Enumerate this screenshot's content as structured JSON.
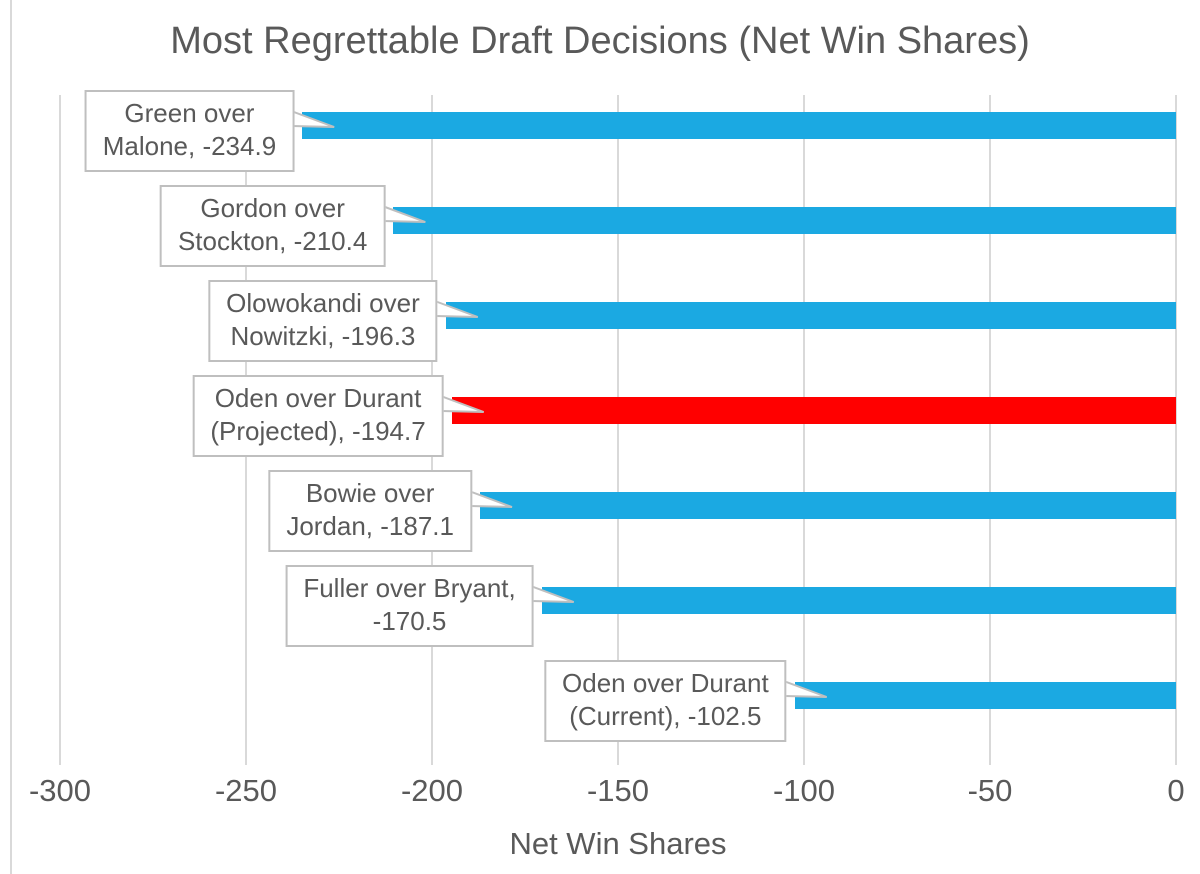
{
  "chart_data": {
    "type": "bar",
    "orientation": "horizontal",
    "title": "Most Regrettable Draft Decisions (Net Win Shares)",
    "xlabel": "Net Win Shares",
    "xlim": [
      -300,
      0
    ],
    "xticks": [
      "-300",
      "-250",
      "-200",
      "-150",
      "-100",
      "-50",
      "0"
    ],
    "xtick_values": [
      -300,
      -250,
      -200,
      -150,
      -100,
      -50,
      0
    ],
    "grid": true,
    "legend": false,
    "categories": [
      "Green over Malone",
      "Gordon over Stockton",
      "Olowokandi over Nowitzki",
      "Oden over Durant (Projected)",
      "Bowie over Jordan",
      "Fuller over Bryant",
      "Oden over Durant (Current)"
    ],
    "values": [
      -234.9,
      -210.4,
      -196.3,
      -194.7,
      -187.1,
      -170.5,
      -102.5
    ],
    "data_labels": [
      {
        "line1": "Green over",
        "line2": "Malone, -234.9"
      },
      {
        "line1": "Gordon over",
        "line2": "Stockton, -210.4"
      },
      {
        "line1": "Olowokandi over",
        "line2": "Nowitzki, -196.3"
      },
      {
        "line1": "Oden over Durant",
        "line2": "(Projected), -194.7"
      },
      {
        "line1": "Bowie over",
        "line2": "Jordan, -187.1"
      },
      {
        "line1": "Fuller over Bryant,",
        "line2": "-170.5"
      },
      {
        "line1": "Oden over Durant",
        "line2": "(Current), -102.5"
      }
    ],
    "bar_colors": [
      "#1ba9e2",
      "#1ba9e2",
      "#1ba9e2",
      "#ff0000",
      "#1ba9e2",
      "#1ba9e2",
      "#1ba9e2"
    ],
    "highlighted_category": "Oden over Durant (Projected)"
  },
  "colors": {
    "bar_default": "#1ba9e2",
    "bar_highlight": "#ff0000",
    "gridline": "#d9d9d9",
    "text": "#595959",
    "callout_border": "#bfbfbf",
    "callout_background": "#ffffff"
  }
}
